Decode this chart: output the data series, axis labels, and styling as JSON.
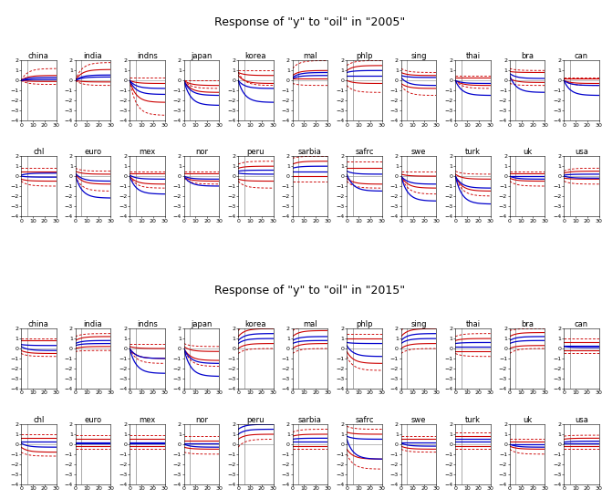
{
  "title_2005": "Response of \"y\" to \"oil\" in \"2005\"",
  "title_2015": "Response of \"y\" to \"oil\" in \"2015\"",
  "countries_row1": [
    "china",
    "india",
    "indns",
    "japan",
    "korea",
    "mal",
    "phlp",
    "sing",
    "thai",
    "bra",
    "can"
  ],
  "countries_row2": [
    "chl",
    "euro",
    "mex",
    "nor",
    "peru",
    "sarbia",
    "safrc",
    "swe",
    "turk",
    "uk",
    "usa"
  ],
  "xlim": [
    0,
    30
  ],
  "ylim": [
    -4,
    2
  ],
  "xticks": [
    0,
    10,
    20,
    30
  ],
  "yticks": [
    -4,
    -3,
    -2,
    -1,
    0,
    1,
    2
  ],
  "line_color_blue": "#0000cc",
  "line_color_red": "#cc0000",
  "zero_line_color": "#888888",
  "vline_color": "#888888",
  "bg_color": "#ffffff",
  "title_fontsize": 9,
  "label_fontsize": 6,
  "tick_fontsize": 4.5,
  "profiles_2005": {
    "china": {
      "b1s": 0.0,
      "b1e": 0.3,
      "b2s": 0.0,
      "b2e": 0.1,
      "ri1s": 0.0,
      "ri1e": -0.1,
      "ri2s": 0.0,
      "ri2e": 0.5,
      "ro1s": 0.0,
      "ro1e": -0.4,
      "ro2s": 0.0,
      "ro2e": 1.2,
      "vx": 5
    },
    "india": {
      "b1s": 0.0,
      "b1e": 0.35,
      "b2s": 0.0,
      "b2e": 0.55,
      "ri1s": 0.0,
      "ri1e": -0.15,
      "ri2s": 0.0,
      "ri2e": 1.1,
      "ro1s": 0.0,
      "ro1e": -0.5,
      "ro2s": 0.0,
      "ro2e": 1.8,
      "vx": 5
    },
    "indns": {
      "b1s": 0.0,
      "b1e": -1.4,
      "b2s": 0.0,
      "b2e": -0.8,
      "ri1s": 0.0,
      "ri1e": -2.2,
      "ri2s": 0.0,
      "ri2e": -0.3,
      "ro1s": 0.0,
      "ro1e": -3.5,
      "ro2s": 0.3,
      "ro2e": 0.3,
      "vx": 5
    },
    "japan": {
      "b1s": 0.0,
      "b1e": -2.5,
      "b2s": 0.0,
      "b2e": -1.5,
      "ri1s": 0.0,
      "ri1e": -1.2,
      "ri2s": 0.0,
      "ri2e": -0.5,
      "ro1s": 0.0,
      "ro1e": -0.8,
      "ro2s": 0.0,
      "ro2e": 0.0,
      "vx": 5
    },
    "korea": {
      "b1s": 0.0,
      "b1e": -2.2,
      "b2s": 0.0,
      "b2e": -0.8,
      "ri1s": 0.5,
      "ri1e": -0.3,
      "ri2s": 0.8,
      "ri2e": 0.5,
      "ro1s": 0.8,
      "ro1e": -0.5,
      "ro2s": 1.0,
      "ro2e": 1.0,
      "vx": 5
    },
    "mal": {
      "b1s": 0.2,
      "b1e": 0.5,
      "b2s": 0.3,
      "b2e": 0.8,
      "ri1s": 0.2,
      "ri1e": 0.2,
      "ri2s": 0.5,
      "ri2e": 1.0,
      "ro1s": -0.3,
      "ro1e": -0.5,
      "ro2s": 1.2,
      "ro2e": 2.0,
      "vx": 5
    },
    "phlp": {
      "b1s": 0.5,
      "b1e": 0.5,
      "b2s": 0.8,
      "b2e": 1.0,
      "ri1s": 0.0,
      "ri1e": -0.3,
      "ri2s": 1.0,
      "ri2e": 1.5,
      "ro1s": -0.5,
      "ro1e": -1.2,
      "ro2s": 1.5,
      "ro2e": 2.0,
      "vx": 5
    },
    "sing": {
      "b1s": 0.3,
      "b1e": -0.5,
      "b2s": 0.5,
      "b2e": 0.3,
      "ri1s": -0.3,
      "ri1e": -0.8,
      "ri2s": 0.8,
      "ri2e": 0.5,
      "ro1s": -0.5,
      "ro1e": -1.5,
      "ro2s": 1.2,
      "ro2e": 0.8,
      "vx": 5
    },
    "thai": {
      "b1s": 0.0,
      "b1e": -1.5,
      "b2s": 0.0,
      "b2e": -0.3,
      "ri1s": 0.0,
      "ri1e": -0.5,
      "ri2s": 0.3,
      "ri2e": 0.3,
      "ro1s": 0.0,
      "ro1e": -0.8,
      "ro2s": 0.5,
      "ro2e": 0.5,
      "vx": 5
    },
    "bra": {
      "b1s": 0.5,
      "b1e": -1.2,
      "b2s": 0.7,
      "b2e": 0.2,
      "ri1s": 0.2,
      "ri1e": -0.2,
      "ri2s": 0.9,
      "ri2e": 0.8,
      "ro1s": -0.3,
      "ro1e": -0.5,
      "ro2s": 1.2,
      "ro2e": 1.0,
      "vx": 5
    },
    "can": {
      "b1s": 0.0,
      "b1e": -1.5,
      "b2s": 0.0,
      "b2e": -0.5,
      "ri1s": 0.0,
      "ri1e": -0.3,
      "ri2s": 0.2,
      "ri2e": 0.2,
      "ro1s": 0.0,
      "ro1e": -0.5,
      "ro2s": 0.3,
      "ro2e": 0.3,
      "vx": 5
    },
    "chl": {
      "b1s": 0.0,
      "b1e": -0.1,
      "b2s": 0.1,
      "b2e": 0.3,
      "ri1s": -0.3,
      "ri1e": -0.5,
      "ri2s": 0.5,
      "ri2e": 0.5,
      "ro1s": -0.5,
      "ro1e": -1.0,
      "ro2s": 0.8,
      "ro2e": 0.8,
      "vx": 5
    },
    "euro": {
      "b1s": 0.1,
      "b1e": -2.2,
      "b2s": 0.3,
      "b2e": -0.5,
      "ri1s": 0.2,
      "ri1e": -0.8,
      "ri2s": 0.5,
      "ri2e": 0.2,
      "ro1s": 0.0,
      "ro1e": -1.5,
      "ro2s": 0.8,
      "ro2e": 0.5,
      "vx": 5
    },
    "mex": {
      "b1s": 0.0,
      "b1e": -1.8,
      "b2s": 0.1,
      "b2e": -0.3,
      "ri1s": 0.0,
      "ri1e": -0.8,
      "ri2s": 0.3,
      "ri2e": 0.3,
      "ro1s": 0.0,
      "ro1e": -1.2,
      "ro2s": 0.5,
      "ro2e": 0.5,
      "vx": 5
    },
    "nor": {
      "b1s": 0.0,
      "b1e": -1.0,
      "b2s": 0.0,
      "b2e": -0.3,
      "ri1s": -0.1,
      "ri1e": -0.5,
      "ri2s": 0.3,
      "ri2e": 0.3,
      "ro1s": -0.2,
      "ro1e": -0.8,
      "ro2s": 0.5,
      "ro2e": 0.5,
      "vx": 5
    },
    "peru": {
      "b1s": 0.3,
      "b1e": 0.2,
      "b2s": 0.5,
      "b2e": 0.6,
      "ri1s": -0.3,
      "ri1e": -0.5,
      "ri2s": 0.8,
      "ri2e": 1.0,
      "ro1s": -0.5,
      "ro1e": -1.2,
      "ro2s": 1.2,
      "ro2e": 1.5,
      "vx": 5
    },
    "sarbia": {
      "b1s": 0.5,
      "b1e": 0.5,
      "b2s": 0.8,
      "b2e": 1.0,
      "ri1s": 0.0,
      "ri1e": 0.0,
      "ri2s": 1.2,
      "ri2e": 1.5,
      "ro1s": -0.5,
      "ro1e": -0.5,
      "ro2s": 1.8,
      "ro2e": 2.0,
      "vx": 5
    },
    "safrc": {
      "b1s": 0.2,
      "b1e": -1.5,
      "b2s": 0.5,
      "b2e": 0.2,
      "ri1s": -0.2,
      "ri1e": -0.8,
      "ri2s": 0.8,
      "ri2e": 0.8,
      "ro1s": -0.5,
      "ro1e": -1.2,
      "ro2s": 1.5,
      "ro2e": 1.5,
      "vx": 5
    },
    "swe": {
      "b1s": 0.0,
      "b1e": -2.5,
      "b2s": 0.0,
      "b2e": -0.8,
      "ri1s": 0.0,
      "ri1e": -1.2,
      "ri2s": 0.2,
      "ri2e": 0.0,
      "ro1s": 0.0,
      "ro1e": -1.8,
      "ro2s": 0.5,
      "ro2e": 0.5,
      "vx": 5
    },
    "turk": {
      "b1s": 0.0,
      "b1e": -2.8,
      "b2s": 0.0,
      "b2e": -1.2,
      "ri1s": 0.0,
      "ri1e": -1.5,
      "ri2s": 0.2,
      "ri2e": -0.3,
      "ro1s": 0.0,
      "ro1e": -2.0,
      "ro2s": 0.5,
      "ro2e": 0.2,
      "vx": 5
    },
    "uk": {
      "b1s": 0.0,
      "b1e": -0.3,
      "b2s": 0.0,
      "b2e": 0.0,
      "ri1s": -0.2,
      "ri1e": -0.5,
      "ri2s": 0.3,
      "ri2e": 0.3,
      "ro1s": -0.5,
      "ro1e": -1.0,
      "ro2s": 0.5,
      "ro2e": 0.5,
      "vx": 5
    },
    "usa": {
      "b1s": 0.0,
      "b1e": -0.2,
      "b2s": 0.1,
      "b2e": 0.2,
      "ri1s": -0.2,
      "ri1e": -0.3,
      "ri2s": 0.3,
      "ri2e": 0.5,
      "ro1s": -0.5,
      "ro1e": -0.8,
      "ro2s": 0.5,
      "ro2e": 0.8,
      "vx": 5
    }
  },
  "profiles_2015": {
    "china": {
      "b1s": 0.2,
      "b1e": -0.2,
      "b2s": 0.4,
      "b2e": 0.3,
      "ri1s": -0.2,
      "ri1e": -0.5,
      "ri2s": 0.8,
      "ri2e": 0.8,
      "ro1s": -0.5,
      "ro1e": -0.8,
      "ro2s": 1.0,
      "ro2e": 1.0,
      "vx": 5
    },
    "india": {
      "b1s": 0.3,
      "b1e": 0.5,
      "b2s": 0.5,
      "b2e": 0.8,
      "ri1s": 0.0,
      "ri1e": 0.2,
      "ri2s": 0.8,
      "ri2e": 1.2,
      "ro1s": -0.3,
      "ro1e": -0.2,
      "ro2s": 1.2,
      "ro2e": 1.5,
      "vx": 5
    },
    "indns": {
      "b1s": 0.0,
      "b1e": -2.5,
      "b2s": 0.0,
      "b2e": -1.0,
      "ri1s": 0.0,
      "ri1e": -1.0,
      "ri2s": 0.2,
      "ri2e": 0.0,
      "ro1s": 0.0,
      "ro1e": -1.5,
      "ro2s": 0.5,
      "ro2e": 0.5,
      "vx": 5
    },
    "japan": {
      "b1s": 0.0,
      "b1e": -2.8,
      "b2s": 0.0,
      "b2e": -1.5,
      "ri1s": 0.0,
      "ri1e": -1.2,
      "ri2s": 0.2,
      "ri2e": -0.3,
      "ro1s": 0.0,
      "ro1e": -1.8,
      "ro2s": 0.5,
      "ro2e": 0.2,
      "vx": 5
    },
    "korea": {
      "b1s": 0.5,
      "b1e": 1.0,
      "b2s": 0.8,
      "b2e": 1.5,
      "ri1s": 0.0,
      "ri1e": 0.5,
      "ri2s": 1.2,
      "ri2e": 2.0,
      "ro1s": -0.5,
      "ro1e": 0.0,
      "ro2s": 1.8,
      "ro2e": 2.5,
      "vx": 5
    },
    "mal": {
      "b1s": 0.5,
      "b1e": 0.8,
      "b2s": 0.8,
      "b2e": 1.2,
      "ri1s": 0.0,
      "ri1e": 0.5,
      "ri2s": 1.2,
      "ri2e": 1.8,
      "ro1s": -0.5,
      "ro1e": 0.0,
      "ro2s": 1.8,
      "ro2e": 2.2,
      "vx": 5
    },
    "phlp": {
      "b1s": 0.3,
      "b1e": -0.8,
      "b2s": 0.6,
      "b2e": 0.5,
      "ri1s": -0.3,
      "ri1e": -1.5,
      "ri2s": 1.0,
      "ri2e": 1.0,
      "ro1s": -0.8,
      "ro1e": -2.2,
      "ro2s": 1.5,
      "ro2e": 1.5,
      "vx": 5
    },
    "sing": {
      "b1s": 0.5,
      "b1e": 1.0,
      "b2s": 0.8,
      "b2e": 1.5,
      "ri1s": 0.0,
      "ri1e": 0.5,
      "ri2s": 1.2,
      "ri2e": 2.0,
      "ro1s": -0.5,
      "ro1e": 0.0,
      "ro2s": 1.8,
      "ro2e": 2.5,
      "vx": 5
    },
    "thai": {
      "b1s": 0.2,
      "b1e": 0.2,
      "b2s": 0.5,
      "b2e": 0.6,
      "ri1s": -0.3,
      "ri1e": -0.3,
      "ri2s": 0.8,
      "ri2e": 1.0,
      "ro1s": -0.5,
      "ro1e": -0.8,
      "ro2s": 1.2,
      "ro2e": 1.5,
      "vx": 5
    },
    "bra": {
      "b1s": 0.5,
      "b1e": 0.8,
      "b2s": 0.8,
      "b2e": 1.2,
      "ri1s": 0.0,
      "ri1e": 0.3,
      "ri2s": 1.2,
      "ri2e": 1.6,
      "ro1s": -0.5,
      "ro1e": 0.0,
      "ro2s": 1.8,
      "ro2e": 2.0,
      "vx": 5
    },
    "can": {
      "b1s": 0.2,
      "b1e": 0.1,
      "b2s": 0.3,
      "b2e": 0.3,
      "ri1s": -0.2,
      "ri1e": -0.2,
      "ri2s": 0.6,
      "ri2e": 0.6,
      "ro1s": -0.5,
      "ro1e": -0.5,
      "ro2s": 1.0,
      "ro2e": 1.0,
      "vx": 5
    },
    "chl": {
      "b1s": 0.1,
      "b1e": -0.3,
      "b2s": 0.3,
      "b2e": 0.3,
      "ri1s": -0.3,
      "ri1e": -0.8,
      "ri2s": 0.6,
      "ri2e": 0.6,
      "ro1s": -0.8,
      "ro1e": -1.2,
      "ro2s": 1.0,
      "ro2e": 1.0,
      "vx": 5
    },
    "euro": {
      "b1s": 0.1,
      "b1e": 0.1,
      "b2s": 0.2,
      "b2e": 0.2,
      "ri1s": -0.2,
      "ri1e": -0.2,
      "ri2s": 0.5,
      "ri2e": 0.5,
      "ro1s": -0.5,
      "ro1e": -0.5,
      "ro2s": 0.9,
      "ro2e": 0.9,
      "vx": 5
    },
    "mex": {
      "b1s": 0.1,
      "b1e": 0.1,
      "b2s": 0.2,
      "b2e": 0.2,
      "ri1s": -0.2,
      "ri1e": -0.2,
      "ri2s": 0.5,
      "ri2e": 0.5,
      "ro1s": -0.5,
      "ro1e": -0.5,
      "ro2s": 0.9,
      "ro2e": 0.9,
      "vx": 5
    },
    "nor": {
      "b1s": 0.0,
      "b1e": -0.3,
      "b2s": 0.1,
      "b2e": 0.1,
      "ri1s": -0.3,
      "ri1e": -0.5,
      "ri2s": 0.4,
      "ri2e": 0.4,
      "ro1s": -0.8,
      "ro1e": -1.0,
      "ro2s": 0.8,
      "ro2e": 0.8,
      "vx": 5
    },
    "peru": {
      "b1s": 1.0,
      "b1e": 1.5,
      "b2s": 1.5,
      "b2e": 2.0,
      "ri1s": 0.5,
      "ri1e": 1.0,
      "ri2s": 2.0,
      "ri2e": 2.5,
      "ro1s": -0.3,
      "ro1e": 0.5,
      "ro2s": 2.5,
      "ro2e": 3.0,
      "vx": 5
    },
    "sarbia": {
      "b1s": 0.3,
      "b1e": 0.3,
      "b2s": 0.5,
      "b2e": 0.6,
      "ri1s": -0.2,
      "ri1e": -0.2,
      "ri2s": 0.8,
      "ri2e": 1.0,
      "ro1s": -0.5,
      "ro1e": -0.5,
      "ro2s": 1.2,
      "ro2e": 1.5,
      "vx": 5
    },
    "safrc": {
      "b1s": 0.5,
      "b1e": -1.5,
      "b2s": 0.8,
      "b2e": 0.5,
      "ri1s": -0.5,
      "ri1e": -1.5,
      "ri2s": 1.2,
      "ri2e": 1.0,
      "ro1s": -1.0,
      "ro1e": -2.5,
      "ro2s": 1.8,
      "ro2e": 1.5,
      "vx": 5
    },
    "swe": {
      "b1s": 0.1,
      "b1e": -0.2,
      "b2s": 0.2,
      "b2e": 0.2,
      "ri1s": -0.2,
      "ri1e": -0.5,
      "ri2s": 0.5,
      "ri2e": 0.5,
      "ro1s": -0.5,
      "ro1e": -0.8,
      "ro2s": 0.8,
      "ro2e": 0.8,
      "vx": 5
    },
    "turk": {
      "b1s": 0.3,
      "b1e": 0.3,
      "b2s": 0.5,
      "b2e": 0.5,
      "ri1s": -0.2,
      "ri1e": -0.2,
      "ri2s": 0.8,
      "ri2e": 0.8,
      "ro1s": -0.5,
      "ro1e": -0.5,
      "ro2s": 1.2,
      "ro2e": 1.2,
      "vx": 5
    },
    "uk": {
      "b1s": 0.0,
      "b1e": -0.3,
      "b2s": 0.0,
      "b2e": 0.0,
      "ri1s": -0.2,
      "ri1e": -0.5,
      "ri2s": 0.3,
      "ri2e": 0.3,
      "ro1s": -0.5,
      "ro1e": -1.0,
      "ro2s": 0.5,
      "ro2e": 0.5,
      "vx": 5
    },
    "usa": {
      "b1s": 0.1,
      "b1e": 0.1,
      "b2s": 0.2,
      "b2e": 0.3,
      "ri1s": -0.2,
      "ri1e": -0.2,
      "ri2s": 0.5,
      "ri2e": 0.6,
      "ro1s": -0.5,
      "ro1e": -0.5,
      "ro2s": 0.8,
      "ro2e": 0.9,
      "vx": 5
    }
  }
}
